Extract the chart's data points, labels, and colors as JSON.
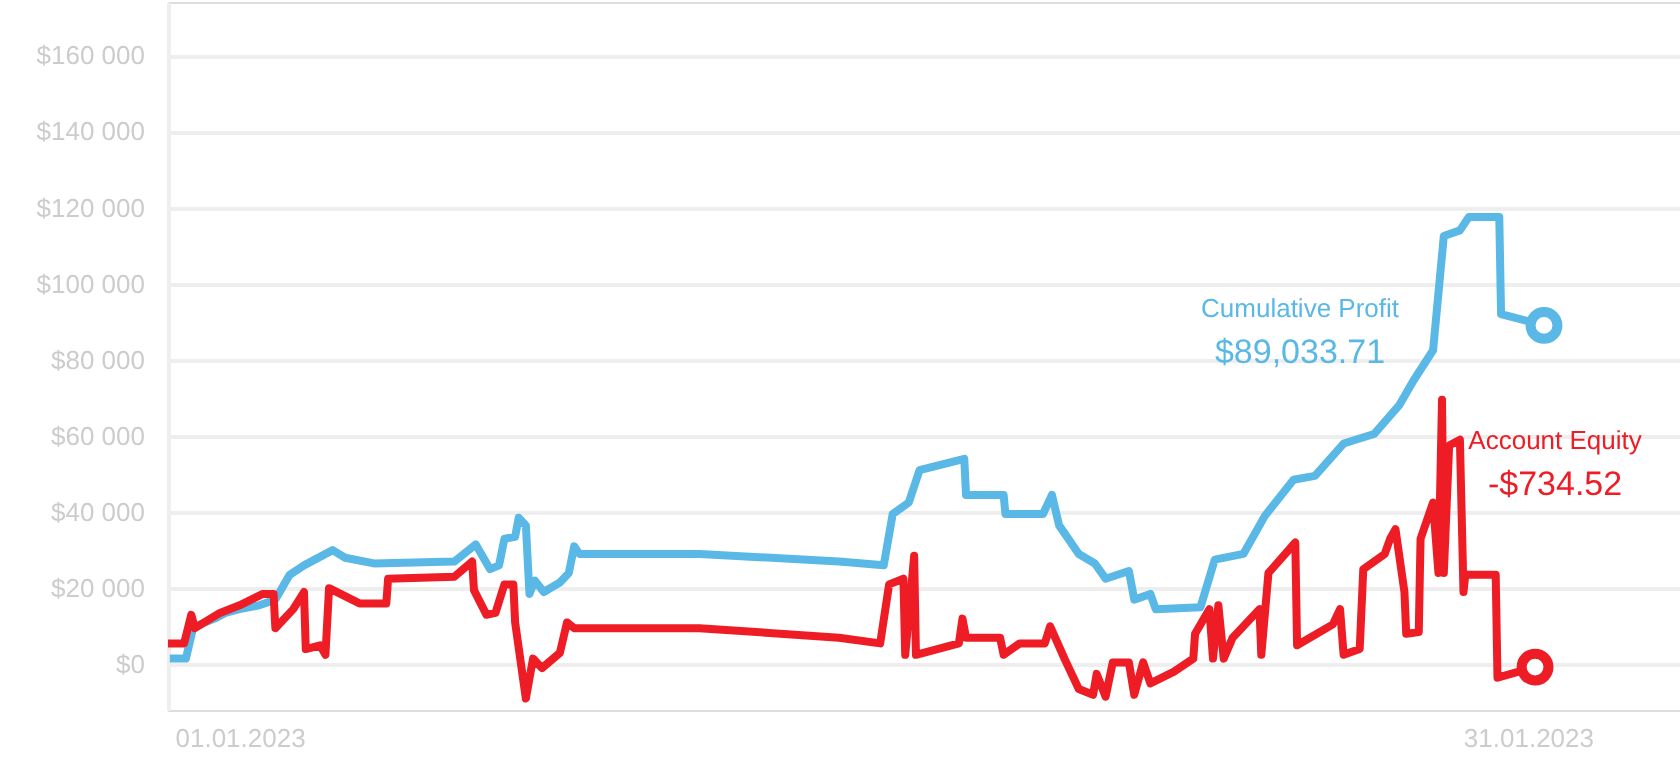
{
  "chart_data": {
    "type": "line",
    "xlim": [
      "2022-12-30T08:00",
      "2023-02-03T13:00"
    ],
    "xticks": [
      {
        "value": "2023-01-01",
        "label": "01.01.2023"
      },
      {
        "value": "2023-01-31",
        "label": "31.01.2023"
      }
    ],
    "ylim": [
      -12000,
      174000
    ],
    "yticks": [
      {
        "value": 0,
        "label": "$0"
      },
      {
        "value": 20000,
        "label": "$20 000"
      },
      {
        "value": 40000,
        "label": "$40 000"
      },
      {
        "value": 60000,
        "label": "$60 000"
      },
      {
        "value": 80000,
        "label": "$80 000"
      },
      {
        "value": 100000,
        "label": "$100 000"
      },
      {
        "value": 120000,
        "label": "$120 000"
      },
      {
        "value": 140000,
        "label": "$140 000"
      },
      {
        "value": 160000,
        "label": "$160 000"
      }
    ],
    "grid": "y",
    "marker": "none",
    "line_style": "solid",
    "series": [
      {
        "name": "Cumulative Profit",
        "color": "#5ab8e6",
        "x": [
          "2022-12-30T09:00",
          "2022-12-30T18:00",
          "2022-12-30T22:00",
          "2022-12-31T02:00",
          "2022-12-31T10:00",
          "2022-12-31T16:00",
          "2023-01-01T00:00",
          "2023-01-01T11:00",
          "2023-01-01T20:00",
          "2023-01-02T04:00",
          "2023-01-02T12:00",
          "2023-01-03T04:00",
          "2023-01-03T11:00",
          "2023-01-04T03:00",
          "2023-01-06T00:00",
          "2023-01-06T12:00",
          "2023-01-06T20:00",
          "2023-01-07T01:00",
          "2023-01-07T04:00",
          "2023-01-07T10:00",
          "2023-01-07T12:00",
          "2023-01-07T16:00",
          "2023-01-07T18:00",
          "2023-01-07T21:00",
          "2023-01-08T02:00",
          "2023-01-08T11:00",
          "2023-01-08T16:00",
          "2023-01-08T19:00",
          "2023-01-08T22:00",
          "2023-01-11T17:00",
          "2023-01-14T23:00",
          "2023-01-16T00:00",
          "2023-01-16T05:00",
          "2023-01-16T14:00",
          "2023-01-16T20:00",
          "2023-01-17T21:00",
          "2023-01-17T22:00",
          "2023-01-18T19:00",
          "2023-01-18T20:00",
          "2023-01-19T17:00",
          "2023-01-19T22:00",
          "2023-01-20T02:00",
          "2023-01-20T13:00",
          "2023-01-20T22:00",
          "2023-01-21T04:00",
          "2023-01-21T17:00",
          "2023-01-21T20:00",
          "2023-01-22T05:00",
          "2023-01-22T08:00",
          "2023-01-23T09:00",
          "2023-01-23T17:00",
          "2023-01-24T09:00",
          "2023-01-24T21:00",
          "2023-01-25T13:00",
          "2023-01-26T01:00",
          "2023-01-26T17:00",
          "2023-01-27T10:00",
          "2023-01-28T00:00",
          "2023-01-28T08:00",
          "2023-01-28T19:00",
          "2023-01-29T01:00",
          "2023-01-29T10:00",
          "2023-01-29T15:00",
          "2023-01-30T08:00",
          "2023-01-30T09:00",
          "2023-01-31T09:00"
        ],
        "values": [
          1500,
          1500,
          9500,
          10500,
          12000,
          13500,
          14500,
          15500,
          17000,
          23500,
          26000,
          30000,
          28000,
          26500,
          27000,
          31500,
          25000,
          26000,
          33000,
          33500,
          38500,
          36500,
          18500,
          22000,
          19000,
          21500,
          24000,
          31000,
          29000,
          29000,
          27000,
          26000,
          39500,
          42500,
          51000,
          54000,
          44500,
          44500,
          39500,
          39500,
          44500,
          36500,
          29000,
          26500,
          22500,
          24500,
          17000,
          18500,
          14500,
          15000,
          27500,
          29000,
          39000,
          48500,
          49500,
          58000,
          60500,
          68000,
          74500,
          82500,
          112500,
          114000,
          117500,
          117500,
          92000,
          89033.71
        ]
      },
      {
        "name": "Account Equity",
        "color": "#ee1c25",
        "x": [
          "2022-12-30T08:00",
          "2022-12-30T17:00",
          "2022-12-30T21:00",
          "2022-12-30T23:00",
          "2022-12-31T13:00",
          "2023-01-01T00:00",
          "2023-01-01T13:00",
          "2023-01-01T19:00",
          "2023-01-01T20:00",
          "2023-01-02T06:00",
          "2023-01-02T12:00",
          "2023-01-02T13:00",
          "2023-01-02T21:00",
          "2023-01-03T00:00",
          "2023-01-03T02:00",
          "2023-01-03T19:00",
          "2023-01-04T10:00",
          "2023-01-04T11:00",
          "2023-01-06T00:00",
          "2023-01-06T10:00",
          "2023-01-06T11:00",
          "2023-01-06T18:00",
          "2023-01-06T23:00",
          "2023-01-07T04:00",
          "2023-01-07T09:00",
          "2023-01-07T10:00",
          "2023-01-07T16:00",
          "2023-01-07T20:00",
          "2023-01-08T01:00",
          "2023-01-08T11:00",
          "2023-01-08T15:00",
          "2023-01-08T19:00",
          "2023-01-11T17:00",
          "2023-01-14T23:00",
          "2023-01-15T22:00",
          "2023-01-16T03:00",
          "2023-01-16T11:00",
          "2023-01-16T12:00",
          "2023-01-16T17:00",
          "2023-01-16T18:00",
          "2023-01-17T18:00",
          "2023-01-17T20:00",
          "2023-01-17T22:00",
          "2023-01-18T17:00",
          "2023-01-18T19:00",
          "2023-01-19T04:00",
          "2023-01-19T18:00",
          "2023-01-19T21:00",
          "2023-01-20T05:00",
          "2023-01-20T13:00",
          "2023-01-20T21:00",
          "2023-01-20T23:00",
          "2023-01-21T04:00",
          "2023-01-21T08:00",
          "2023-01-21T17:00",
          "2023-01-21T20:00",
          "2023-01-22T01:00",
          "2023-01-22T05:00",
          "2023-01-22T18:00",
          "2023-01-23T05:00",
          "2023-01-23T06:00",
          "2023-01-23T14:00",
          "2023-01-23T16:00",
          "2023-01-23T19:00",
          "2023-01-23T22:00",
          "2023-01-24T03:00",
          "2023-01-24T18:00",
          "2023-01-24T19:00",
          "2023-01-24T23:00",
          "2023-01-25T14:00",
          "2023-01-25T15:00",
          "2023-01-26T11:00",
          "2023-01-26T15:00",
          "2023-01-26T17:00",
          "2023-01-27T02:00",
          "2023-01-27T04:00",
          "2023-01-27T16:00",
          "2023-01-27T19:00",
          "2023-01-27T22:00",
          "2023-01-28T03:00",
          "2023-01-28T04:00",
          "2023-01-28T11:00",
          "2023-01-28T12:00",
          "2023-01-28T19:00",
          "2023-01-28T22:00",
          "2023-01-29T00:00",
          "2023-01-29T01:00",
          "2023-01-29T04:00",
          "2023-01-29T10:00",
          "2023-01-29T12:00",
          "2023-01-29T13:00",
          "2023-01-30T06:00",
          "2023-01-30T07:00",
          "2023-01-31T04:00"
        ],
        "values": [
          5500,
          5500,
          13000,
          9500,
          13500,
          15500,
          18500,
          18500,
          9500,
          14500,
          19000,
          4000,
          5000,
          2500,
          20000,
          16000,
          16000,
          22500,
          23000,
          27000,
          19500,
          13000,
          13500,
          21000,
          21000,
          11000,
          -9000,
          1500,
          -1000,
          3000,
          11000,
          9500,
          9500,
          7000,
          5500,
          21000,
          22500,
          2500,
          28500,
          2500,
          5500,
          12000,
          7000,
          7000,
          2500,
          5500,
          5500,
          10000,
          1500,
          -6500,
          -8000,
          -2500,
          -8500,
          500,
          500,
          -8000,
          500,
          -5000,
          -2000,
          1500,
          8000,
          14500,
          1500,
          15500,
          1500,
          7000,
          14500,
          2500,
          24000,
          32000,
          5000,
          10500,
          14500,
          2500,
          4000,
          25000,
          29000,
          33000,
          35500,
          19000,
          8000,
          8500,
          33000,
          42500,
          24000,
          69500,
          24000,
          57500,
          59000,
          19000,
          23500,
          23500,
          -3500,
          -734.52
        ]
      }
    ],
    "annotations": [
      "$89,033.71",
      "-$734.52"
    ]
  }
}
